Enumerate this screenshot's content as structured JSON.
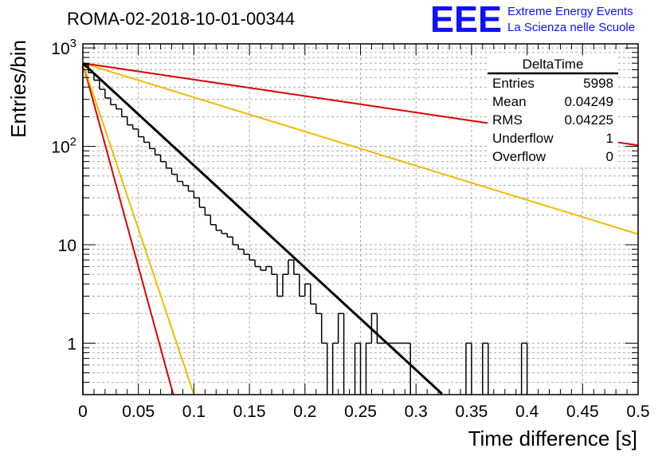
{
  "logo": {
    "mark": "EEE",
    "line1": "Extreme Energy Events",
    "line2": "La Scienza nelle Scuole"
  },
  "stats_box": {
    "name": "DeltaTime",
    "rows": [
      {
        "label": "Entries",
        "value": "5998"
      },
      {
        "label": "Mean",
        "value": "0.04249"
      },
      {
        "label": "RMS",
        "value": "0.04225"
      },
      {
        "label": "Underflow",
        "value": "1"
      },
      {
        "label": "Overflow",
        "value": "0"
      }
    ]
  },
  "colors": {
    "histogram": "#000000",
    "fit": "#000000",
    "red_curves": "#dd0000",
    "yellow_curves": "#f0bb00",
    "grid": "#aaaaaa"
  },
  "chart_data": {
    "type": "histogram",
    "title": "ROMA-02-2018-10-01-00344",
    "xlabel": "Time difference [s]",
    "ylabel": "Entries/bin",
    "xlim": [
      0,
      0.5
    ],
    "ylim": [
      0.3,
      1100
    ],
    "y_log_scale": true,
    "grid": true,
    "x_ticks": [
      0,
      0.05,
      0.1,
      0.15,
      0.2,
      0.25,
      0.3,
      0.35,
      0.4,
      0.45,
      0.5
    ],
    "x_tick_labels": [
      "0",
      "0.05",
      "0.1",
      "0.15",
      "0.2",
      "0.25",
      "0.3",
      "0.35",
      "0.4",
      "0.45",
      "0.5"
    ],
    "y_ticks": [
      1,
      10,
      100,
      1000
    ],
    "y_tick_labels": [
      "1",
      "10",
      "10^2",
      "10^3"
    ],
    "bin_width": 0.005,
    "bin_counts": [
      680,
      560,
      470,
      380,
      310,
      265,
      240,
      200,
      165,
      150,
      125,
      110,
      95,
      82,
      70,
      60,
      52,
      44,
      40,
      35,
      30,
      24,
      20,
      16,
      14,
      13,
      12,
      10,
      9,
      8,
      7,
      6,
      5.5,
      6,
      5,
      3,
      5,
      7,
      5,
      3,
      4,
      2.5,
      2,
      1,
      0,
      1,
      2,
      0,
      0,
      1,
      0,
      1,
      2,
      1,
      1,
      1,
      1,
      1,
      1,
      0,
      0,
      0,
      0,
      0,
      0,
      0,
      0,
      0,
      0,
      1,
      0,
      0,
      1,
      0,
      0,
      0,
      0,
      0,
      0,
      1,
      0,
      0,
      0,
      0,
      0,
      0,
      0,
      0,
      0,
      0,
      0,
      0,
      0,
      0,
      0,
      0,
      0,
      0,
      0,
      0
    ],
    "fit_curve": {
      "a0": 700,
      "tau": 0.0418,
      "x_max": 0.33
    },
    "envelope_curves": [
      {
        "color": "red",
        "a0": 700,
        "tau": 0.0105
      },
      {
        "color": "yellow",
        "a0": 700,
        "tau": 0.0129
      },
      {
        "color": "yellow",
        "a0": 700,
        "tau": 0.125
      },
      {
        "color": "red",
        "a0": 700,
        "tau": 0.26
      }
    ]
  }
}
